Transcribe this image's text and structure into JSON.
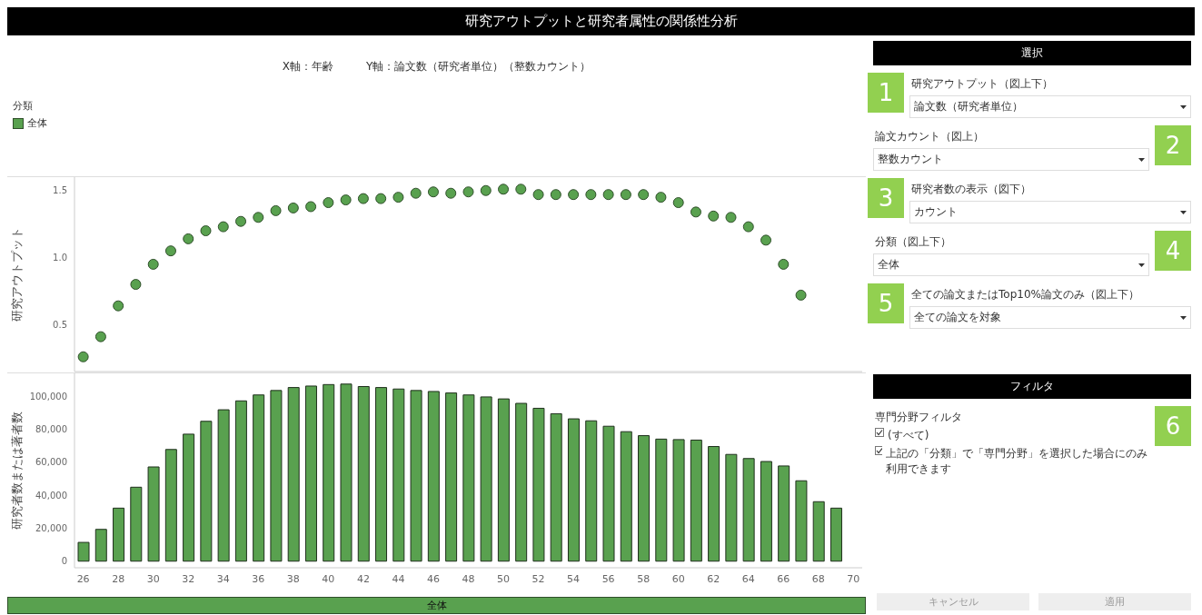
{
  "chart_data": [
    {
      "type": "scatter",
      "title": "研究アウトプットと研究者属性の関係性分析",
      "subtitle": "X軸：年齢　　　Y軸：論文数（研究者単位）（整数カウント）",
      "ylabel": "研究アウトプット",
      "legend_title": "分類",
      "legend": "top left",
      "marker": "circle",
      "tick_labels": "y",
      "categories": [
        "26",
        null,
        "28",
        null,
        "30",
        null,
        "32",
        null,
        "34",
        null,
        "36",
        null,
        "38",
        null,
        "40",
        null,
        "42",
        null,
        "44",
        null,
        "46",
        null,
        "48",
        null,
        "50",
        null,
        "52",
        null,
        "54",
        null,
        "56",
        null,
        "58",
        null,
        "60",
        null,
        "62",
        null,
        "64",
        null,
        "66",
        null,
        "68",
        null,
        "70"
      ],
      "series": [
        {
          "name": "全体",
          "color": "#59a14f",
          "values": [
            0.26,
            0.41,
            0.64,
            0.8,
            0.95,
            1.05,
            1.14,
            1.2,
            1.23,
            1.27,
            1.3,
            1.35,
            1.37,
            1.38,
            1.41,
            1.43,
            1.44,
            1.44,
            1.45,
            1.48,
            1.49,
            1.48,
            1.49,
            1.5,
            1.51,
            1.51,
            1.47,
            1.47,
            1.47,
            1.47,
            1.47,
            1.47,
            1.47,
            1.45,
            1.41,
            1.34,
            1.31,
            1.3,
            1.23,
            1.13,
            0.95,
            0.72,
            null,
            null,
            null
          ]
        }
      ],
      "ylim": [
        0.15,
        1.6
      ],
      "yticks": [
        0.5,
        {
          "value": 1,
          "label": "1.0"
        },
        1.5
      ]
    },
    {
      "type": "bar",
      "ylabel": "研究者数または著者数",
      "annotations": [
        "全体"
      ],
      "categories": [
        "26",
        null,
        "28",
        null,
        "30",
        null,
        "32",
        null,
        "34",
        null,
        "36",
        null,
        "38",
        null,
        "40",
        null,
        "42",
        null,
        "44",
        null,
        "46",
        null,
        "48",
        null,
        "50",
        null,
        "52",
        null,
        "54",
        null,
        "56",
        null,
        "58",
        null,
        "60",
        null,
        "62",
        null,
        "64",
        null,
        "66",
        null,
        "68",
        null,
        "70"
      ],
      "series": [
        {
          "color": "#59a14f",
          "values": [
            11400,
            19300,
            32200,
            44900,
            57200,
            67800,
            77100,
            84900,
            91900,
            97300,
            100900,
            103600,
            105400,
            106300,
            107200,
            107500,
            106000,
            105400,
            104500,
            103600,
            103000,
            102100,
            100900,
            99700,
            98500,
            95800,
            92800,
            89500,
            86400,
            85200,
            81900,
            78600,
            76200,
            74100,
            73800,
            73500,
            69600,
            64800,
            62300,
            60500,
            57800,
            48800,
            36100,
            32200,
            null
          ]
        }
      ],
      "ylim": [
        -4000,
        114000
      ],
      "yticks": [
        {
          "value": 0,
          "label": "0"
        },
        {
          "value": 20000,
          "label": "20,000"
        },
        {
          "value": 40000,
          "label": "40,000"
        },
        {
          "value": 60000,
          "label": "60,000"
        },
        {
          "value": 80000,
          "label": "80,000"
        },
        {
          "value": 100000,
          "label": "100,000"
        }
      ]
    },
    {
      "type": "other",
      "title": "選択",
      "annotations": [
        "研究アウトプット（図上下）",
        "論文数（研究者単位）",
        "論文カウント（図上）",
        "整数カウント",
        "研究者数の表示（図下）",
        "カウント",
        "分類（図上下）",
        "全体",
        "全ての論文またはTop10%論文のみ（図上下）",
        "全ての論文を対象",
        "フィルタ",
        "専門分野フィルタ",
        "(すべて)",
        "上記の「分類」で「専門分野」を選択した場合にのみ利用できます",
        "キャンセル",
        "適用",
        "1",
        "2",
        "3",
        "4",
        "5",
        "6"
      ]
    }
  ]
}
